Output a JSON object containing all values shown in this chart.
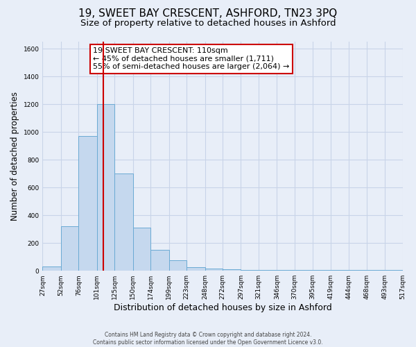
{
  "title": "19, SWEET BAY CRESCENT, ASHFORD, TN23 3PQ",
  "subtitle": "Size of property relative to detached houses in Ashford",
  "xlabel": "Distribution of detached houses by size in Ashford",
  "ylabel": "Number of detached properties",
  "bin_edges": [
    27,
    52,
    76,
    101,
    125,
    150,
    174,
    199,
    223,
    248,
    272,
    297,
    321,
    346,
    370,
    395,
    419,
    444,
    468,
    493,
    517
  ],
  "bar_heights": [
    30,
    320,
    970,
    1200,
    700,
    310,
    150,
    75,
    25,
    15,
    10,
    5,
    5,
    5,
    5,
    5,
    5,
    5,
    5,
    5,
    15
  ],
  "bar_color": "#c5d8ee",
  "bar_edgecolor": "#6aaad4",
  "vline_x": 110,
  "vline_color": "#cc0000",
  "ylim": [
    0,
    1650
  ],
  "yticks": [
    0,
    200,
    400,
    600,
    800,
    1000,
    1200,
    1400,
    1600
  ],
  "annotation_title": "19 SWEET BAY CRESCENT: 110sqm",
  "annotation_line1": "← 45% of detached houses are smaller (1,711)",
  "annotation_line2": "55% of semi-detached houses are larger (2,064) →",
  "footer_line1": "Contains HM Land Registry data © Crown copyright and database right 2024.",
  "footer_line2": "Contains public sector information licensed under the Open Government Licence v3.0.",
  "bg_color": "#e8eef8",
  "plot_bg_color": "#e8eef8",
  "title_fontsize": 11,
  "subtitle_fontsize": 9.5,
  "tick_label_fontsize": 6.5,
  "ylabel_fontsize": 8.5,
  "xlabel_fontsize": 9,
  "footer_fontsize": 5.5,
  "annotation_fontsize": 8,
  "grid_color": "#c8d4e8"
}
